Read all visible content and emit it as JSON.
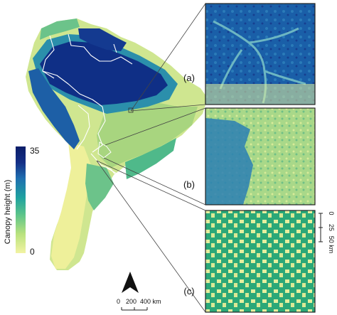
{
  "legend": {
    "title": "Canopy height (m)",
    "max_label": "35",
    "min_label": "0",
    "colors": [
      "#f2f3a3",
      "#b9e27e",
      "#5cc48a",
      "#1fa2a0",
      "#1f6fb0",
      "#142f86",
      "#0b1d68"
    ]
  },
  "insets": [
    {
      "label": "(a)"
    },
    {
      "label": "(b)"
    },
    {
      "label": "(c)"
    }
  ],
  "inset_scale": {
    "labels": [
      "0",
      "25",
      "50 km"
    ]
  },
  "map_scale": {
    "labels": [
      "0",
      "200",
      "400 km"
    ]
  },
  "north_arrow": {
    "icon": "north-arrow-icon"
  }
}
